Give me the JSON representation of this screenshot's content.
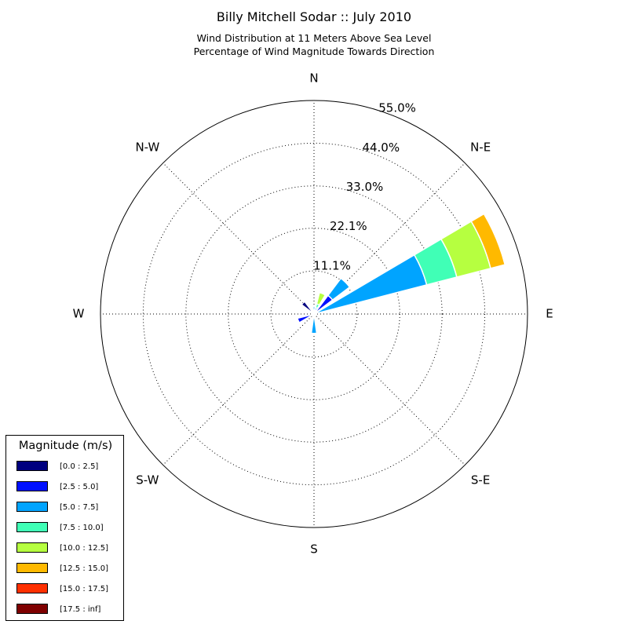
{
  "title": "Billy Mitchell Sodar :: July 2010",
  "subtitle_line1": "Wind Distribution at 11 Meters Above Sea Level",
  "subtitle_line2": "Percentage of Wind Magnitude Towards Direction",
  "chart_data": {
    "type": "windrose",
    "title": "Billy Mitchell Sodar :: July 2010",
    "subtitle": "Wind Distribution at 11 Meters Above Sea Level / Percentage of Wind Magnitude Towards Direction",
    "direction_labels": [
      {
        "name": "N",
        "angle": 0
      },
      {
        "name": "N-E",
        "angle": 45
      },
      {
        "name": "E",
        "angle": 90
      },
      {
        "name": "S-E",
        "angle": 135
      },
      {
        "name": "S",
        "angle": 180
      },
      {
        "name": "S-W",
        "angle": 225
      },
      {
        "name": "W",
        "angle": 270
      },
      {
        "name": "N-W",
        "angle": 315
      }
    ],
    "radial_ticks": [
      "11.1%",
      "22.1%",
      "33.0%",
      "44.0%",
      "55.0%"
    ],
    "radial_tick_values": [
      11.1,
      22.1,
      33.0,
      44.0,
      55.0
    ],
    "rmax": 55.0,
    "grid": true,
    "legend_title": "Magnitude (m/s)",
    "legend_position": "bottom-left",
    "bins": [
      {
        "label": "[0.0 : 2.5]",
        "color": "#00007f"
      },
      {
        "label": "[2.5 : 5.0]",
        "color": "#0010ff"
      },
      {
        "label": "[5.0 : 7.5]",
        "color": "#00a4ff"
      },
      {
        "label": "[7.5 : 10.0]",
        "color": "#40ffb6"
      },
      {
        "label": "[10.0 : 12.5]",
        "color": "#b6ff40"
      },
      {
        "label": "[12.5 : 15.0]",
        "color": "#ffb900"
      },
      {
        "label": "[15.0 : 17.5]",
        "color": "#ff3000"
      },
      {
        "label": "[17.5 : inf]",
        "color": "#7f0000"
      }
    ],
    "sector_width_deg": 16,
    "sectors": [
      {
        "direction_deg": 0,
        "bin_values": [
          0,
          0.6,
          1.3,
          0,
          0,
          0,
          0,
          0
        ]
      },
      {
        "direction_deg": 22.5,
        "bin_values": [
          0,
          0,
          1.7,
          1.0,
          3.0,
          0,
          0,
          0
        ]
      },
      {
        "direction_deg": 45,
        "bin_values": [
          0,
          6.0,
          5.5,
          0,
          0,
          0,
          0,
          0
        ]
      },
      {
        "direction_deg": 67.5,
        "bin_values": [
          0,
          0,
          30.0,
          8.0,
          9.0,
          3.8,
          0,
          0
        ]
      },
      {
        "direction_deg": 180,
        "bin_values": [
          0,
          0,
          5.0,
          0,
          0,
          0,
          0,
          0
        ]
      },
      {
        "direction_deg": 247.5,
        "bin_values": [
          0.9,
          3.5,
          0,
          0,
          0,
          0,
          0,
          0
        ]
      },
      {
        "direction_deg": 315,
        "bin_values": [
          4.0,
          0,
          0,
          0,
          0,
          0,
          0,
          0
        ]
      },
      {
        "direction_deg": 337.5,
        "bin_values": [
          0,
          0.7,
          0,
          0,
          0,
          0,
          0,
          0
        ]
      }
    ]
  }
}
